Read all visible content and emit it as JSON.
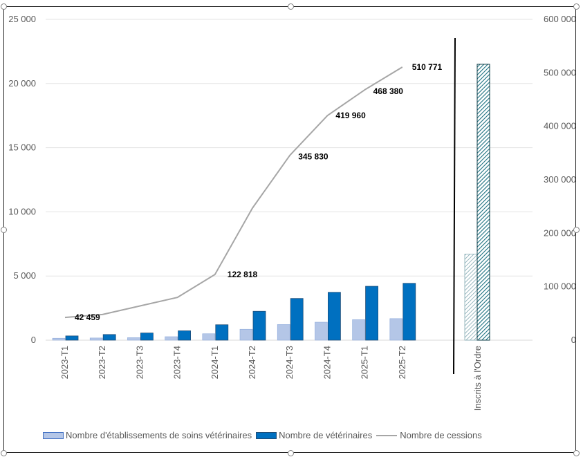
{
  "chart_data": {
    "type": "bar",
    "title": "",
    "categories": [
      "2023-T1",
      "2023-T2",
      "2023-T3",
      "2023-T4",
      "2024-T1",
      "2024-T2",
      "2024-T3",
      "2024-T4",
      "2025-T1",
      "2025-T2"
    ],
    "separate_category": "Inscrits à l'Ordre",
    "series": [
      {
        "name": "Nombre d'établissements de soins vétérinaires",
        "axis": "left",
        "type": "bar",
        "color": "#b4c6e7",
        "values": [
          150,
          170,
          200,
          270,
          500,
          850,
          1220,
          1400,
          1600,
          1680
        ],
        "inscrits_value": 6700
      },
      {
        "name": "Nombre de vétérinaires",
        "axis": "left",
        "type": "bar",
        "color": "#0070c0",
        "values": [
          330,
          440,
          560,
          730,
          1200,
          2250,
          3250,
          3730,
          4200,
          4430
        ],
        "inscrits_value": 21500
      },
      {
        "name": "Nombre de cessions",
        "axis": "right",
        "type": "line",
        "color": "#a6a6a6",
        "values": [
          42459,
          48000,
          64000,
          80000,
          122818,
          247000,
          345830,
          419960,
          468380,
          510771
        ],
        "labels": [
          "42 459",
          "",
          "",
          "",
          "122 818",
          "",
          "345 830",
          "419 960",
          "468 380",
          "510 771"
        ]
      }
    ],
    "y_left": {
      "min": 0,
      "max": 25000,
      "ticks": [
        "0",
        "5 000",
        "10 000",
        "15 000",
        "20 000",
        "25 000"
      ]
    },
    "y_right": {
      "min": 0,
      "max": 600000,
      "ticks": [
        "0",
        "100 000",
        "200 000",
        "300 000",
        "400 000",
        "500 000",
        "600 000"
      ]
    },
    "legend_position": "bottom",
    "grid": true
  }
}
